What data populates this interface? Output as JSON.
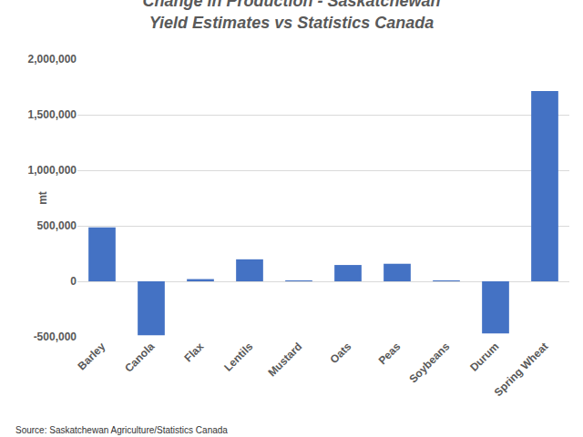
{
  "chart_data": {
    "type": "bar",
    "title": "Change in Production - Saskatchewan Yield Estimates vs Statistics Canada",
    "y_label": "mt",
    "categories": [
      "Barley",
      "Canola",
      "Flax",
      "Lentils",
      "Mustard",
      "Oats",
      "Peas",
      "Soybeans",
      "Durum",
      "Spring Wheat"
    ],
    "values": [
      485000,
      -485000,
      20000,
      198000,
      3000,
      147000,
      158000,
      3000,
      -470000,
      1713000
    ],
    "color": "#4472c4",
    "ylim": [
      -500000,
      2000000
    ],
    "yticks": [
      {
        "value": -500000,
        "label": "-500,000"
      },
      0,
      {
        "value": 500000,
        "label": "500,000"
      },
      {
        "value": 1000000,
        "label": "1,000,000"
      },
      {
        "value": 1500000,
        "label": "1,500,000"
      },
      {
        "value": 2000000,
        "label": "2,000,000"
      }
    ],
    "grid": true,
    "annotations": [
      "Source: Saskatchewan Agriculture/Statistics Canada"
    ]
  }
}
